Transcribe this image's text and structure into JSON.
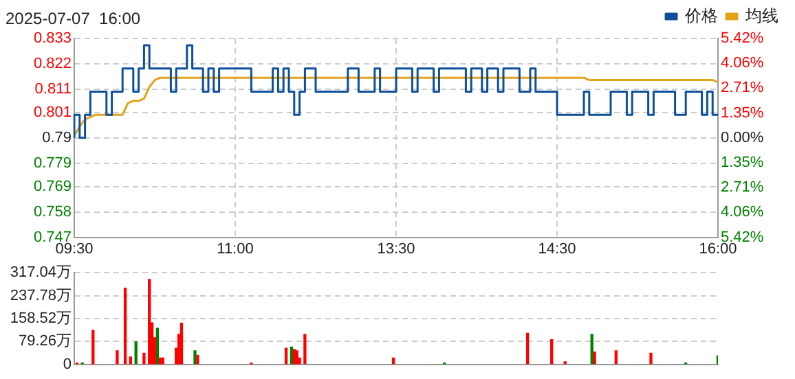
{
  "chart_data": [
    {
      "type": "step",
      "title": "2025-07-07  16:00",
      "legend": "top right",
      "grid": true,
      "marker": "none",
      "categories": [
        "09:30",
        null,
        null,
        null,
        null,
        null,
        null,
        null,
        null,
        null,
        null,
        null,
        null,
        null,
        null,
        null,
        null,
        null,
        null,
        null,
        null,
        null,
        null,
        null,
        null,
        null,
        null,
        null,
        null,
        null,
        "11:00",
        null,
        null,
        null,
        null,
        null,
        null,
        null,
        null,
        null,
        null,
        null,
        null,
        null,
        null,
        null,
        null,
        null,
        null,
        null,
        null,
        null,
        null,
        null,
        null,
        null,
        null,
        null,
        null,
        null,
        "13:30",
        null,
        null,
        null,
        null,
        null,
        null,
        null,
        null,
        null,
        null,
        null,
        null,
        null,
        null,
        null,
        null,
        null,
        null,
        null,
        null,
        null,
        null,
        null,
        null,
        null,
        null,
        null,
        null,
        null,
        "14:30",
        null,
        null,
        null,
        null,
        null,
        null,
        null,
        null,
        null,
        null,
        null,
        null,
        null,
        null,
        null,
        null,
        null,
        null,
        null,
        null,
        null,
        null,
        null,
        null,
        null,
        null,
        null,
        null,
        null,
        "16:00"
      ],
      "ylim": [
        0.747,
        0.833
      ],
      "yticks": [
        0.747,
        0.758,
        0.769,
        0.779,
        0.79,
        0.801,
        0.811,
        0.822,
        0.833
      ],
      "y2lim": [
        -5.42,
        5.42
      ],
      "y2ticks": [
        {
          "value": -5.42,
          "label": "5.42%"
        },
        {
          "value": -4.06,
          "label": "4.06%"
        },
        {
          "value": -2.71,
          "label": "2.71%"
        },
        {
          "value": -1.35,
          "label": "1.35%"
        },
        {
          "value": 0,
          "label": "0.00%"
        },
        {
          "value": 1.35,
          "label": "1.35%"
        },
        {
          "value": 2.71,
          "label": "2.71%"
        },
        {
          "value": 4.06,
          "label": "4.06%"
        },
        {
          "value": 5.42,
          "label": "5.42%"
        }
      ],
      "series": [
        {
          "name": "价格",
          "color": "#0e4f9c",
          "values": [
            0.79,
            0.8,
            0.79,
            0.8,
            0.81,
            0.81,
            0.81,
            0.8,
            0.81,
            0.81,
            0.82,
            0.82,
            0.81,
            0.82,
            0.83,
            0.82,
            0.82,
            0.82,
            0.82,
            0.81,
            0.82,
            0.82,
            0.83,
            0.82,
            0.82,
            0.81,
            0.82,
            0.81,
            0.82,
            0.82,
            0.82,
            0.82,
            0.82,
            0.82,
            0.81,
            0.81,
            0.81,
            0.81,
            0.82,
            0.81,
            0.82,
            0.81,
            0.8,
            0.81,
            0.82,
            0.82,
            0.81,
            0.81,
            0.81,
            0.81,
            0.81,
            0.81,
            0.82,
            0.82,
            0.81,
            0.81,
            0.81,
            0.82,
            0.81,
            0.81,
            0.81,
            0.82,
            0.82,
            0.82,
            0.81,
            0.82,
            0.82,
            0.82,
            0.81,
            0.82,
            0.82,
            0.82,
            0.82,
            0.82,
            0.81,
            0.82,
            0.82,
            0.81,
            0.82,
            0.82,
            0.81,
            0.82,
            0.82,
            0.82,
            0.81,
            0.81,
            0.82,
            0.81,
            0.81,
            0.81,
            0.81,
            0.8,
            0.8,
            0.8,
            0.8,
            0.8,
            0.81,
            0.8,
            0.8,
            0.8,
            0.8,
            0.81,
            0.81,
            0.81,
            0.8,
            0.81,
            0.81,
            0.81,
            0.8,
            0.81,
            0.81,
            0.81,
            0.81,
            0.8,
            0.8,
            0.81,
            0.81,
            0.81,
            0.8,
            0.81,
            0.8
          ]
        },
        {
          "type": "line",
          "name": "均线",
          "color": "#e3a21a",
          "values": [
            0.791,
            0.795,
            0.798,
            0.799,
            0.8,
            0.8,
            0.8,
            0.8,
            0.8,
            0.8,
            0.805,
            0.806,
            0.806,
            0.807,
            0.812,
            0.815,
            0.816,
            0.816,
            0.816,
            0.816,
            0.816,
            0.816,
            0.816,
            0.816,
            0.816,
            0.816,
            0.816,
            0.816,
            0.816,
            0.816,
            0.816,
            0.816,
            0.816,
            0.816,
            0.816,
            0.816,
            0.816,
            0.816,
            0.816,
            0.816,
            0.816,
            0.816,
            0.816,
            0.816,
            0.816,
            0.816,
            0.816,
            0.816,
            0.816,
            0.816,
            0.816,
            0.816,
            0.816,
            0.816,
            0.816,
            0.816,
            0.816,
            0.816,
            0.816,
            0.816,
            0.816,
            0.816,
            0.816,
            0.816,
            0.816,
            0.816,
            0.816,
            0.816,
            0.816,
            0.816,
            0.816,
            0.816,
            0.816,
            0.816,
            0.816,
            0.816,
            0.816,
            0.816,
            0.816,
            0.816,
            0.816,
            0.816,
            0.816,
            0.816,
            0.816,
            0.816,
            0.816,
            0.816,
            0.816,
            0.816,
            0.816,
            0.816,
            0.816,
            0.816,
            0.816,
            0.816,
            0.815,
            0.815,
            0.815,
            0.815,
            0.815,
            0.815,
            0.815,
            0.815,
            0.815,
            0.815,
            0.815,
            0.815,
            0.815,
            0.815,
            0.815,
            0.815,
            0.815,
            0.815,
            0.815,
            0.815,
            0.815,
            0.815,
            0.815,
            0.815,
            0.814
          ]
        }
      ]
    },
    {
      "type": "bar",
      "grid": "y",
      "tick_labels": "y",
      "categories": [
        null,
        null,
        null,
        null,
        null,
        null,
        null,
        null,
        null,
        null,
        null,
        null,
        null,
        null,
        null,
        null,
        null,
        null,
        null,
        null,
        null,
        null,
        null,
        null,
        null,
        null,
        null,
        null,
        null,
        null,
        null,
        null,
        null,
        null,
        null,
        null,
        null,
        null,
        null,
        null,
        null,
        null,
        null,
        null,
        null,
        null,
        null,
        null,
        null,
        null,
        null,
        null,
        null,
        null,
        null,
        null,
        null,
        null,
        null,
        null,
        null,
        null,
        null,
        null,
        null,
        null,
        null,
        null,
        null,
        null,
        null,
        null,
        null,
        null,
        null,
        null,
        null,
        null,
        null,
        null,
        null,
        null,
        null,
        null,
        null,
        null,
        null,
        null,
        null,
        null,
        null,
        null,
        null,
        null,
        null,
        null,
        null,
        null,
        null,
        null,
        null,
        null,
        null,
        null,
        null,
        null,
        null,
        null,
        null,
        null,
        null,
        null,
        null,
        null,
        null,
        null,
        null,
        null,
        null,
        null,
        null,
        null,
        null,
        null,
        null,
        null,
        null,
        null,
        null,
        null,
        null,
        null,
        null,
        null,
        null,
        null,
        null,
        null,
        null,
        null,
        null,
        null,
        null,
        null,
        null,
        null,
        null,
        null,
        null,
        null,
        null,
        null,
        null,
        null,
        null,
        null,
        null,
        null,
        null,
        null,
        null,
        null,
        null,
        null,
        null,
        null,
        null,
        null,
        null,
        null,
        null,
        null,
        null,
        null,
        null,
        null,
        null,
        null,
        null,
        null,
        null,
        null,
        null,
        null,
        null,
        null,
        null,
        null,
        null,
        null,
        null,
        null,
        null,
        null,
        null,
        null,
        null,
        null,
        null,
        null,
        null,
        null,
        null,
        null,
        null,
        null,
        null,
        null,
        null,
        null,
        null,
        null,
        null,
        null,
        null,
        null,
        null,
        null,
        null,
        null,
        null,
        null,
        null,
        null,
        null,
        null,
        null,
        null,
        null,
        null,
        null,
        null,
        null,
        null,
        null,
        null,
        null,
        null,
        null,
        null,
        null
      ],
      "ylim": [
        0,
        317.04
      ],
      "yticks": [
        {
          "value": 0,
          "label": "0"
        },
        {
          "value": 79.26,
          "label": "79.26万"
        },
        {
          "value": 158.52,
          "label": "158.52万"
        },
        {
          "value": 237.78,
          "label": "237.78万"
        },
        {
          "value": 317.04,
          "label": "317.04万"
        }
      ],
      "series": [
        {
          "color": "#ff0000",
          "values": [
            null,
            5,
            null,
            null,
            null,
            null,
            null,
            118,
            null,
            null,
            null,
            null,
            null,
            null,
            null,
            null,
            47,
            null,
            null,
            264,
            null,
            26,
            null,
            null,
            null,
            null,
            39,
            null,
            294,
            144,
            92,
            null,
            22,
            22,
            null,
            null,
            null,
            null,
            56,
            104,
            143,
            null,
            null,
            null,
            null,
            null,
            32,
            null,
            null,
            null,
            null,
            null,
            null,
            null,
            null,
            null,
            null,
            null,
            null,
            null,
            null,
            null,
            null,
            null,
            null,
            null,
            5,
            null,
            null,
            null,
            null,
            null,
            null,
            null,
            null,
            null,
            null,
            null,
            null,
            56,
            null,
            null,
            52,
            47,
            22,
            null,
            104,
            null,
            null,
            null,
            null,
            null,
            null,
            null,
            null,
            null,
            null,
            null,
            null,
            null,
            null,
            null,
            null,
            null,
            null,
            null,
            null,
            null,
            null,
            null,
            null,
            null,
            null,
            null,
            null,
            null,
            null,
            null,
            null,
            22,
            null,
            null,
            null,
            null,
            null,
            null,
            null,
            null,
            null,
            null,
            null,
            null,
            null,
            null,
            null,
            null,
            null,
            null,
            null,
            null,
            null,
            null,
            null,
            null,
            null,
            null,
            null,
            null,
            null,
            null,
            null,
            null,
            null,
            null,
            null,
            null,
            null,
            null,
            null,
            null,
            null,
            null,
            null,
            null,
            null,
            null,
            null,
            null,
            null,
            108,
            null,
            null,
            null,
            null,
            null,
            null,
            null,
            null,
            86,
            null,
            null,
            null,
            null,
            9,
            null,
            null,
            null,
            null,
            null,
            null,
            null,
            null,
            null,
            null,
            43,
            null,
            null,
            null,
            null,
            null,
            null,
            null,
            47,
            null,
            null,
            null,
            null,
            null,
            null,
            null,
            null,
            null,
            null,
            null,
            null,
            39,
            null,
            null,
            null,
            null,
            null,
            null,
            null,
            null,
            null,
            null,
            null,
            null,
            null,
            null,
            null,
            null,
            null,
            null,
            null,
            null,
            null,
            null,
            null,
            null,
            null
          ]
        },
        {
          "color": "#008000",
          "values": [
            null,
            null,
            null,
            5,
            null,
            null,
            null,
            null,
            null,
            null,
            null,
            null,
            null,
            null,
            null,
            null,
            null,
            null,
            null,
            null,
            null,
            null,
            null,
            78,
            null,
            null,
            null,
            null,
            null,
            null,
            null,
            125,
            null,
            null,
            null,
            null,
            null,
            null,
            null,
            null,
            null,
            null,
            null,
            null,
            null,
            47,
            null,
            null,
            null,
            null,
            null,
            null,
            null,
            null,
            null,
            null,
            null,
            null,
            null,
            null,
            null,
            null,
            null,
            null,
            null,
            null,
            null,
            null,
            null,
            null,
            null,
            null,
            null,
            null,
            null,
            null,
            null,
            null,
            null,
            null,
            null,
            60,
            null,
            null,
            null,
            null,
            null,
            null,
            null,
            null,
            null,
            null,
            null,
            null,
            null,
            null,
            null,
            null,
            null,
            null,
            null,
            null,
            null,
            null,
            null,
            null,
            null,
            null,
            null,
            null,
            null,
            null,
            null,
            null,
            null,
            null,
            null,
            null,
            null,
            null,
            null,
            null,
            null,
            null,
            null,
            null,
            null,
            null,
            null,
            null,
            null,
            null,
            null,
            null,
            null,
            null,
            null,
            null,
            5,
            null,
            null,
            null,
            null,
            null,
            null,
            null,
            null,
            null,
            null,
            null,
            null,
            null,
            null,
            null,
            null,
            null,
            null,
            null,
            null,
            null,
            null,
            null,
            null,
            null,
            null,
            null,
            null,
            null,
            null,
            null,
            null,
            null,
            null,
            null,
            null,
            null,
            null,
            null,
            null,
            null,
            null,
            null,
            null,
            null,
            null,
            null,
            null,
            null,
            null,
            null,
            null,
            null,
            null,
            104,
            null,
            null,
            null,
            null,
            null,
            null,
            null,
            null,
            null,
            null,
            null,
            null,
            null,
            null,
            null,
            null,
            null,
            null,
            null,
            null,
            null,
            null,
            null,
            null,
            null,
            null,
            null,
            null,
            null,
            null,
            null,
            null,
            null,
            null,
            5,
            null,
            null,
            null,
            null,
            null,
            null,
            null,
            null,
            null,
            null,
            null,
            30
          ]
        }
      ]
    }
  ]
}
